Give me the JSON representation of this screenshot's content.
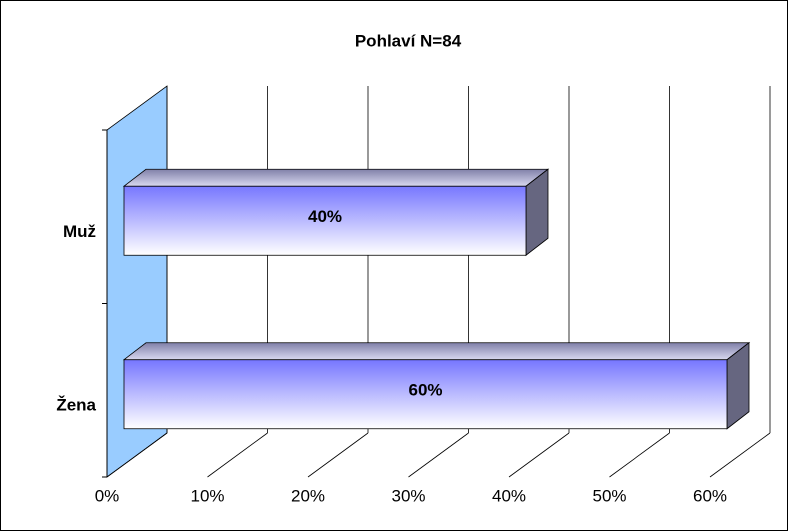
{
  "chart_data": {
    "type": "bar3d_horizontal",
    "title": "Pohlaví N=84",
    "categories": [
      "Muž",
      "Žena"
    ],
    "values": [
      40,
      60
    ],
    "value_labels": [
      "40%",
      "60%"
    ],
    "color": "#8080ff",
    "wall_color": "#99ccff",
    "xlim": [
      0,
      60
    ],
    "xticks": [
      {
        "value": 0,
        "label": "0%"
      },
      {
        "value": 10,
        "label": "10%"
      },
      {
        "value": 20,
        "label": "20%"
      },
      {
        "value": 30,
        "label": "30%"
      },
      {
        "value": 40,
        "label": "40%"
      },
      {
        "value": 50,
        "label": "50%"
      },
      {
        "value": 60,
        "label": "60%"
      }
    ],
    "grid": true
  }
}
